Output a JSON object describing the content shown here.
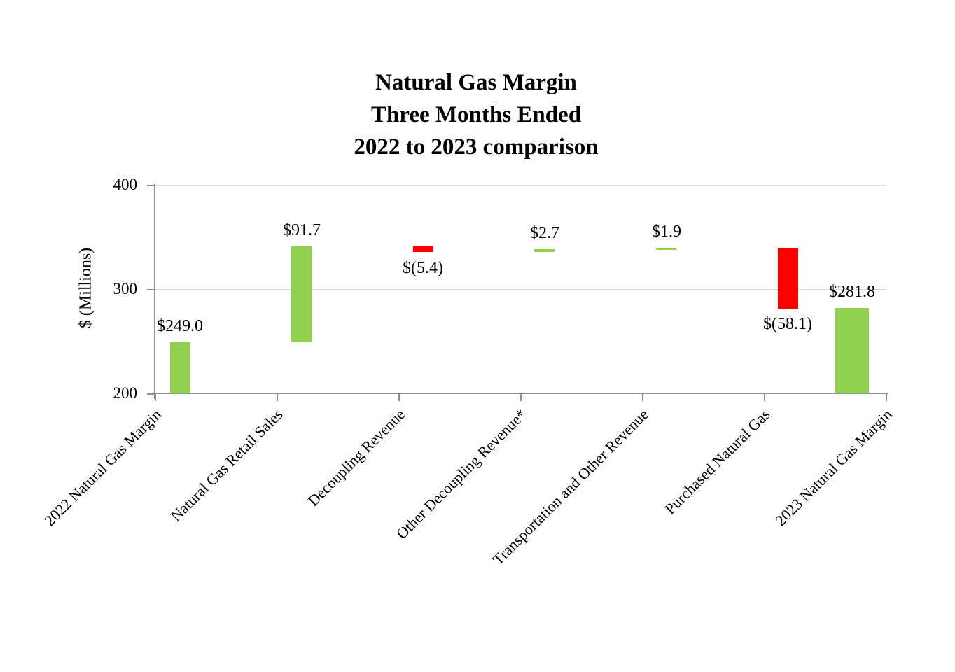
{
  "title": {
    "line1": "Natural Gas Margin",
    "line2": "Three Months Ended",
    "line3": "2022 to 2023 comparison"
  },
  "chart_data": {
    "type": "bar",
    "subtype": "waterfall",
    "title": "Natural Gas Margin Three Months Ended 2022 to 2023 comparison",
    "ylabel": "$ (Millions)",
    "ylim": [
      200,
      400
    ],
    "yticks": [
      200,
      300,
      400
    ],
    "gridlines": [
      300,
      400
    ],
    "grid": "horizontal-only",
    "legend": "none",
    "colors": {
      "increase": "#92d050",
      "decrease": "#ff0000",
      "axis": "#8e8e8e",
      "gridline": "#d9d9d9",
      "text": "#000000"
    },
    "categories": [
      "2022 Natural Gas Margin",
      "Natural Gas Retail Sales",
      "Decoupling Revenue",
      "Other Decoupling Revenue*",
      "Transportation and Other Revenue",
      "Purchased Natural Gas",
      "2023 Natural Gas Margin"
    ],
    "bars": [
      {
        "category": "2022 Natural Gas Margin",
        "value": 249.0,
        "label": "$249.0",
        "from": 200.0,
        "to": 249.0,
        "color": "increase",
        "label_position": "above"
      },
      {
        "category": "Natural Gas Retail Sales",
        "value": 91.7,
        "label": "$91.7",
        "from": 249.0,
        "to": 340.7,
        "color": "increase",
        "label_position": "above"
      },
      {
        "category": "Decoupling Revenue",
        "value": -5.4,
        "label": "$(5.4)",
        "from": 335.3,
        "to": 340.7,
        "color": "decrease",
        "label_position": "below"
      },
      {
        "category": "Other Decoupling Revenue*",
        "value": 2.7,
        "label": "$2.7",
        "from": 335.3,
        "to": 338.0,
        "color": "increase",
        "label_position": "above"
      },
      {
        "category": "Transportation and Other Revenue",
        "value": 1.9,
        "label": "$1.9",
        "from": 338.0,
        "to": 339.9,
        "color": "increase",
        "label_position": "above"
      },
      {
        "category": "Purchased Natural Gas",
        "value": -58.1,
        "label": "$(58.1)",
        "from": 281.8,
        "to": 339.9,
        "color": "decrease",
        "label_position": "below"
      },
      {
        "category": "2023 Natural Gas Margin",
        "value": 281.8,
        "label": "$281.8",
        "from": 200.0,
        "to": 281.8,
        "color": "increase",
        "label_position": "above"
      }
    ]
  }
}
